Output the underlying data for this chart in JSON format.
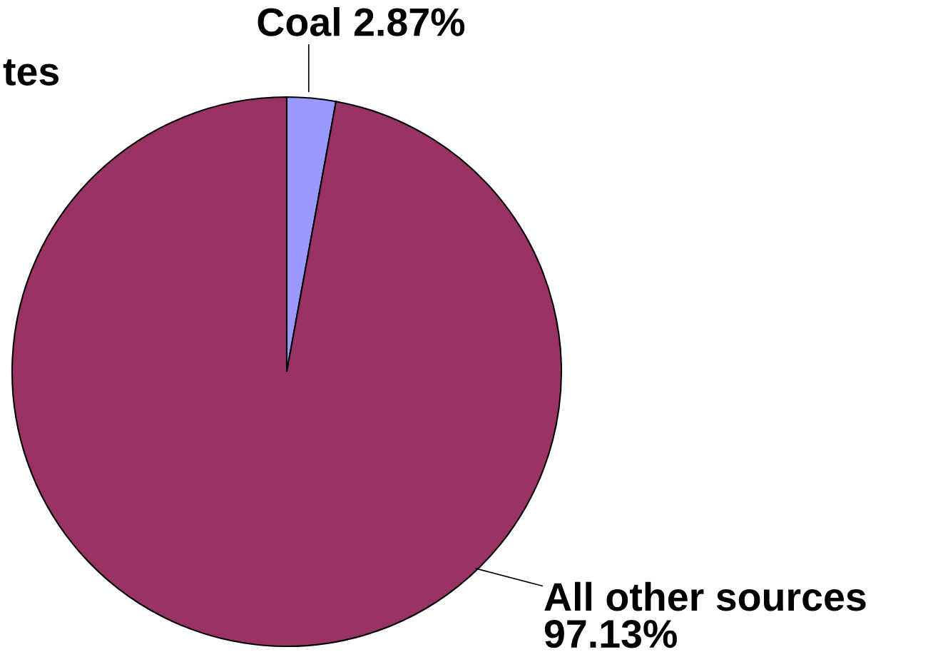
{
  "chart_data": {
    "type": "pie",
    "categories": [
      "Coal",
      "All other sources"
    ],
    "values": [
      2.87,
      97.13
    ],
    "value_labels": [
      "2.87%",
      "97.13%"
    ],
    "colors": [
      "#9999ff",
      "#993366"
    ],
    "annotations": [
      "tes"
    ]
  }
}
